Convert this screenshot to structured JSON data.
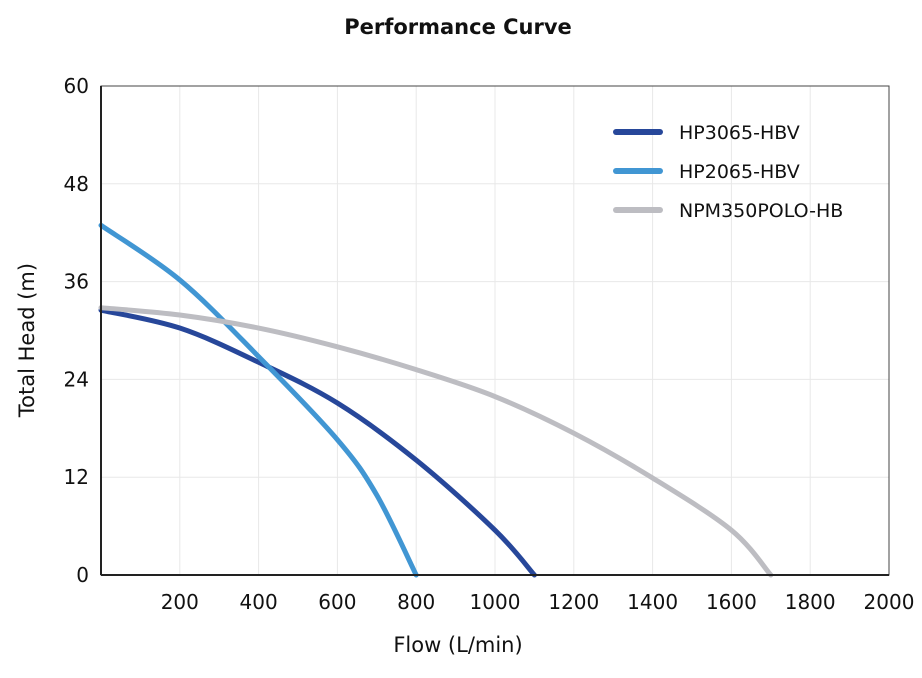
{
  "chart_data": {
    "type": "line",
    "title": "Performance Curve",
    "xlabel": "Flow (L/min)",
    "ylabel": "Total Head (m)",
    "xlim": [
      0,
      2000
    ],
    "ylim": [
      0,
      60
    ],
    "xticks": [
      200,
      400,
      600,
      800,
      1000,
      1200,
      1400,
      1600,
      1800,
      2000
    ],
    "yticks": [
      0,
      12,
      24,
      36,
      48,
      60
    ],
    "grid": true,
    "legend_position": "top-right",
    "series": [
      {
        "name": "HP3065-HBV",
        "color": "#27479a",
        "x": [
          0,
          200,
          400,
          600,
          800,
          1000,
          1100
        ],
        "y": [
          32.5,
          30.3,
          26.1,
          21.1,
          14.1,
          5.5,
          0
        ]
      },
      {
        "name": "HP2065-HBV",
        "color": "#4196d3",
        "x": [
          0,
          200,
          400,
          600,
          700,
          800
        ],
        "y": [
          42.9,
          36.2,
          26.8,
          16.6,
          9.8,
          0
        ]
      },
      {
        "name": "NPM350POLO-HB",
        "color": "#bdbdc2",
        "x": [
          0,
          200,
          400,
          600,
          800,
          1000,
          1200,
          1400,
          1600,
          1700
        ],
        "y": [
          32.8,
          31.9,
          30.3,
          28.0,
          25.2,
          21.9,
          17.4,
          11.9,
          5.5,
          0
        ]
      }
    ]
  }
}
